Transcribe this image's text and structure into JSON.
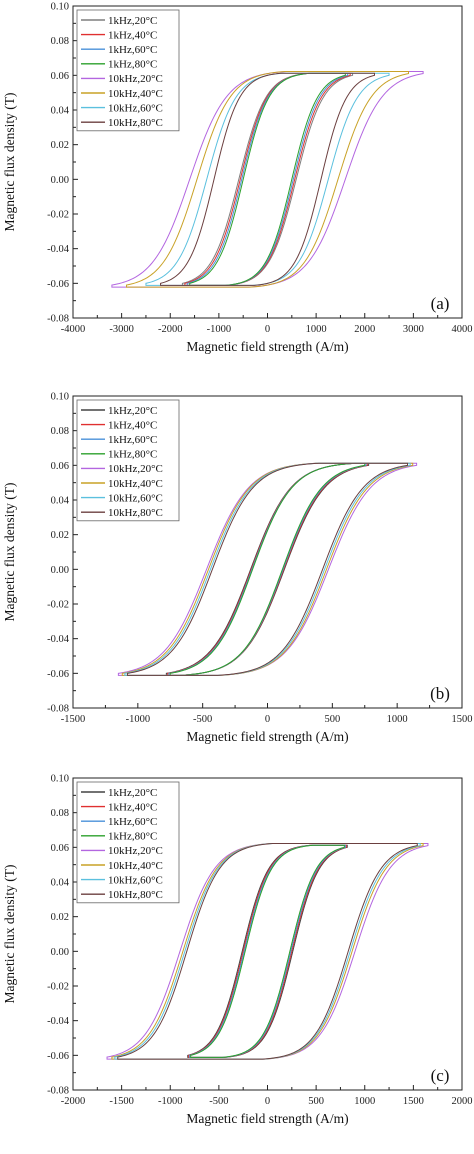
{
  "chart_data": [
    {
      "type": "line",
      "panel_label": "(a)",
      "xlabel": "Magnetic field strength (A/m)",
      "ylabel": "Magnetic flux density (T)",
      "xlim": [
        -4000,
        4000
      ],
      "ylim": [
        -0.08,
        0.1
      ],
      "xticks": [
        "-4000",
        "-3000",
        "-2000",
        "-1000",
        "0",
        "1000",
        "2000",
        "3000",
        "4000"
      ],
      "yticks": [
        "-0.08",
        "-0.06",
        "-0.04",
        "-0.02",
        "0.00",
        "0.02",
        "0.04",
        "0.06",
        "0.08",
        "0.10"
      ],
      "legend_position": "top-left",
      "series": [
        {
          "name": "1kHz,20°C",
          "color": "#7f7f7f",
          "hmax": 1750,
          "hc": 590,
          "bmax": 0.06
        },
        {
          "name": "1kHz,40°C",
          "color": "#e03030",
          "hmax": 1700,
          "hc": 560,
          "bmax": 0.06
        },
        {
          "name": "1kHz,60°C",
          "color": "#4a90d9",
          "hmax": 1650,
          "hc": 530,
          "bmax": 0.06
        },
        {
          "name": "1kHz,80°C",
          "color": "#2ca02c",
          "hmax": 1600,
          "hc": 500,
          "bmax": 0.06
        },
        {
          "name": "10kHz,20°C",
          "color": "#b366e0",
          "hmax": 3200,
          "hc": 1600,
          "bmax": 0.061
        },
        {
          "name": "10kHz,40°C",
          "color": "#c9a227",
          "hmax": 2900,
          "hc": 1450,
          "bmax": 0.061
        },
        {
          "name": "10kHz,60°C",
          "color": "#5bc0de",
          "hmax": 2500,
          "hc": 1250,
          "bmax": 0.06
        },
        {
          "name": "10kHz,80°C",
          "color": "#6b3f3f",
          "hmax": 2200,
          "hc": 1100,
          "bmax": 0.06
        }
      ]
    },
    {
      "type": "line",
      "panel_label": "(b)",
      "xlabel": "Magnetic field strength (A/m)",
      "ylabel": "Magnetic flux density (T)",
      "xlim": [
        -1500,
        1500
      ],
      "ylim": [
        -0.08,
        0.1
      ],
      "xticks": [
        "-1500",
        "-1000",
        "-500",
        "0",
        "500",
        "1000",
        "1500"
      ],
      "yticks": [
        "-0.08",
        "-0.06",
        "-0.04",
        "-0.02",
        "0.00",
        "0.02",
        "0.04",
        "0.06",
        "0.08",
        "0.10"
      ],
      "legend_position": "top-left",
      "series": [
        {
          "name": "1kHz,20°C",
          "color": "#444444",
          "hmax": 780,
          "hc": 130,
          "bmax": 0.06
        },
        {
          "name": "1kHz,40°C",
          "color": "#e03030",
          "hmax": 770,
          "hc": 125,
          "bmax": 0.06
        },
        {
          "name": "1kHz,60°C",
          "color": "#4a90d9",
          "hmax": 760,
          "hc": 120,
          "bmax": 0.06
        },
        {
          "name": "1kHz,80°C",
          "color": "#2ca02c",
          "hmax": 750,
          "hc": 115,
          "bmax": 0.06
        },
        {
          "name": "10kHz,20°C",
          "color": "#b366e0",
          "hmax": 1150,
          "hc": 470,
          "bmax": 0.06
        },
        {
          "name": "10kHz,40°C",
          "color": "#c9a227",
          "hmax": 1120,
          "hc": 455,
          "bmax": 0.06
        },
        {
          "name": "10kHz,60°C",
          "color": "#5bc0de",
          "hmax": 1100,
          "hc": 440,
          "bmax": 0.06
        },
        {
          "name": "10kHz,80°C",
          "color": "#6b3f3f",
          "hmax": 1080,
          "hc": 425,
          "bmax": 0.06
        }
      ]
    },
    {
      "type": "line",
      "panel_label": "(c)",
      "xlabel": "Magnetic field strength (A/m)",
      "ylabel": "Magnetic flux density (T)",
      "xlim": [
        -2000,
        2000
      ],
      "ylim": [
        -0.08,
        0.1
      ],
      "xticks": [
        "-2000",
        "-1500",
        "-1000",
        "-500",
        "0",
        "500",
        "1000",
        "1500",
        "2000"
      ],
      "yticks": [
        "-0.08",
        "-0.06",
        "-0.04",
        "-0.02",
        "0.00",
        "0.02",
        "0.04",
        "0.06",
        "0.08",
        "0.10"
      ],
      "legend_position": "top-left",
      "series": [
        {
          "name": "1kHz,20°C",
          "color": "#444444",
          "hmax": 820,
          "hc": 260,
          "bmax": 0.06
        },
        {
          "name": "1kHz,40°C",
          "color": "#e03030",
          "hmax": 810,
          "hc": 250,
          "bmax": 0.06
        },
        {
          "name": "1kHz,60°C",
          "color": "#4a90d9",
          "hmax": 800,
          "hc": 240,
          "bmax": 0.06
        },
        {
          "name": "1kHz,80°C",
          "color": "#2ca02c",
          "hmax": 790,
          "hc": 230,
          "bmax": 0.06
        },
        {
          "name": "10kHz,20°C",
          "color": "#b366e0",
          "hmax": 1650,
          "hc": 900,
          "bmax": 0.061
        },
        {
          "name": "10kHz,40°C",
          "color": "#c9a227",
          "hmax": 1600,
          "hc": 870,
          "bmax": 0.061
        },
        {
          "name": "10kHz,60°C",
          "color": "#5bc0de",
          "hmax": 1570,
          "hc": 850,
          "bmax": 0.061
        },
        {
          "name": "10kHz,80°C",
          "color": "#6b3f3f",
          "hmax": 1540,
          "hc": 830,
          "bmax": 0.061
        }
      ]
    }
  ]
}
